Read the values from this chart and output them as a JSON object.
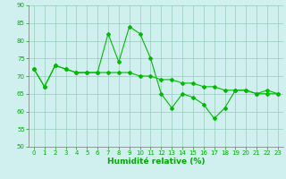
{
  "title": "",
  "xlabel": "Humidité relative (%)",
  "ylabel": "",
  "x": [
    0,
    1,
    2,
    3,
    4,
    5,
    6,
    7,
    8,
    9,
    10,
    11,
    12,
    13,
    14,
    15,
    16,
    17,
    18,
    19,
    20,
    21,
    22,
    23
  ],
  "y_line1": [
    72,
    67,
    73,
    72,
    71,
    71,
    71,
    82,
    74,
    84,
    82,
    75,
    65,
    61,
    65,
    64,
    62,
    58,
    61,
    66,
    66,
    65,
    66,
    65
  ],
  "y_line2": [
    72,
    67,
    73,
    72,
    71,
    71,
    71,
    71,
    71,
    71,
    70,
    70,
    69,
    69,
    68,
    68,
    67,
    67,
    66,
    66,
    66,
    65,
    65,
    65
  ],
  "ylim": [
    50,
    90
  ],
  "xlim": [
    -0.5,
    23.5
  ],
  "yticks": [
    50,
    55,
    60,
    65,
    70,
    75,
    80,
    85,
    90
  ],
  "xticks": [
    0,
    1,
    2,
    3,
    4,
    5,
    6,
    7,
    8,
    9,
    10,
    11,
    12,
    13,
    14,
    15,
    16,
    17,
    18,
    19,
    20,
    21,
    22,
    23
  ],
  "line_color": "#00bb00",
  "bg_color": "#d0f0f0",
  "grid_color": "#99ccbb",
  "marker": "D",
  "markersize": 2.0,
  "linewidth": 0.8,
  "xlabel_fontsize": 6.5,
  "tick_fontsize": 5.0,
  "tick_color": "#00aa00",
  "xlabel_color": "#00aa00",
  "ytick_color": "#00aa00"
}
